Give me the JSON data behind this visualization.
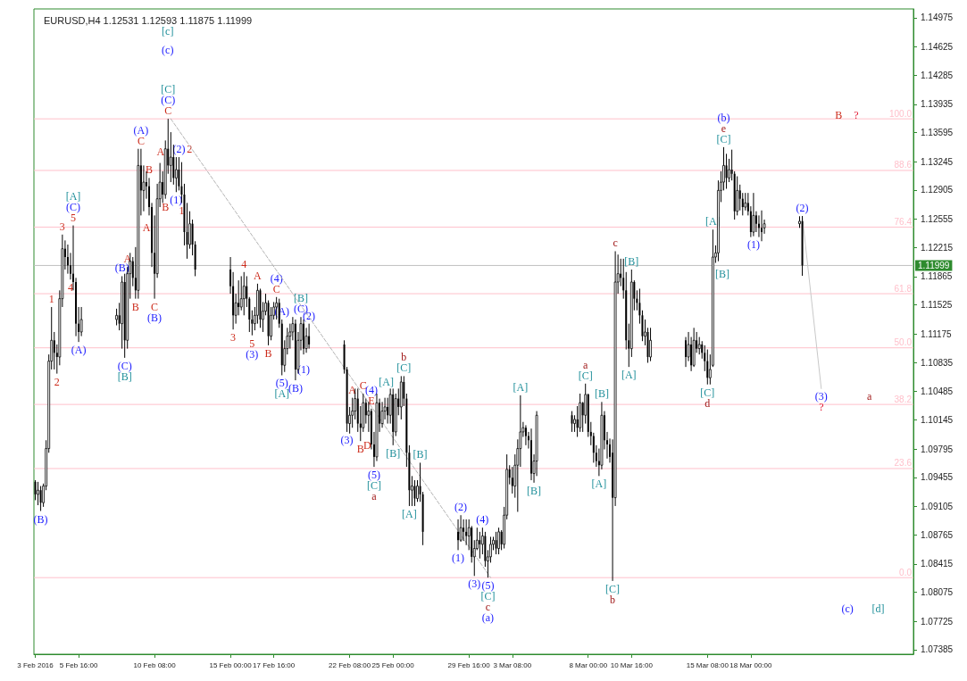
{
  "chart_data": {
    "type": "candlestick",
    "title": "EURUSD,H4 1.12531 1.12593 1.11875 1.11999",
    "color": "#000000",
    "marker": "none",
    "x": [
      "2016-02-03T00:00",
      "2016-02-03T04:00",
      "2016-02-03T08:00",
      "2016-02-03T12:00",
      "2016-02-03T16:00",
      "2016-02-03T20:00",
      "2016-02-04T00:00",
      "2016-02-04T04:00",
      "2016-02-04T08:00",
      "2016-02-04T12:00",
      "2016-02-04T16:00",
      "2016-02-04T20:00",
      "2016-02-05T00:00",
      "2016-02-05T04:00",
      "2016-02-05T08:00",
      "2016-02-05T12:00",
      "2016-02-05T16:00",
      "2016-02-05T20:00",
      "2016-02-08T00:00",
      "2016-02-08T04:00",
      "2016-02-08T08:00",
      "2016-02-08T12:00",
      "2016-02-08T16:00",
      "2016-02-08T20:00",
      "2016-02-09T00:00",
      "2016-02-09T04:00",
      "2016-02-09T08:00",
      "2016-02-09T12:00",
      "2016-02-09T16:00",
      "2016-02-09T20:00",
      "2016-02-10T00:00",
      "2016-02-10T04:00",
      "2016-02-10T08:00",
      "2016-02-10T12:00",
      "2016-02-10T16:00",
      "2016-02-10T20:00",
      "2016-02-11T00:00",
      "2016-02-11T04:00",
      "2016-02-11T08:00",
      "2016-02-11T12:00",
      "2016-02-11T16:00",
      "2016-02-11T20:00",
      "2016-02-12T00:00",
      "2016-02-12T04:00",
      "2016-02-12T08:00",
      "2016-02-12T12:00",
      "2016-02-12T16:00",
      "2016-02-12T20:00",
      "2016-02-15T00:00",
      "2016-02-15T04:00",
      "2016-02-15T08:00",
      "2016-02-15T12:00",
      "2016-02-15T16:00",
      "2016-02-15T20:00",
      "2016-02-16T00:00",
      "2016-02-16T04:00",
      "2016-02-16T08:00",
      "2016-02-16T12:00",
      "2016-02-16T16:00",
      "2016-02-16T20:00",
      "2016-02-17T00:00",
      "2016-02-17T04:00",
      "2016-02-17T08:00",
      "2016-02-17T12:00",
      "2016-02-17T16:00",
      "2016-02-17T20:00",
      "2016-02-18T00:00",
      "2016-02-18T04:00",
      "2016-02-18T08:00",
      "2016-02-18T12:00",
      "2016-02-18T16:00",
      "2016-02-18T20:00",
      "2016-02-19T00:00",
      "2016-02-19T04:00",
      "2016-02-19T08:00",
      "2016-02-19T12:00",
      "2016-02-19T16:00",
      "2016-02-19T20:00",
      "2016-02-22T00:00",
      "2016-02-22T04:00",
      "2016-02-22T08:00",
      "2016-02-22T12:00",
      "2016-02-22T16:00",
      "2016-02-22T20:00",
      "2016-02-23T00:00",
      "2016-02-23T04:00",
      "2016-02-23T08:00",
      "2016-02-23T12:00",
      "2016-02-23T16:00",
      "2016-02-23T20:00",
      "2016-02-24T00:00",
      "2016-02-24T04:00",
      "2016-02-24T08:00",
      "2016-02-24T12:00",
      "2016-02-24T16:00",
      "2016-02-24T20:00",
      "2016-02-25T00:00",
      "2016-02-25T04:00",
      "2016-02-25T08:00",
      "2016-02-25T12:00",
      "2016-02-25T16:00",
      "2016-02-25T20:00",
      "2016-02-26T00:00",
      "2016-02-26T04:00",
      "2016-02-26T08:00",
      "2016-02-26T12:00",
      "2016-02-26T16:00",
      "2016-02-26T20:00",
      "2016-02-29T00:00",
      "2016-02-29T04:00",
      "2016-02-29T08:00",
      "2016-02-29T12:00",
      "2016-02-29T16:00",
      "2016-02-29T20:00",
      "2016-03-01T00:00",
      "2016-03-01T04:00",
      "2016-03-01T08:00",
      "2016-03-01T12:00",
      "2016-03-01T16:00",
      "2016-03-01T20:00",
      "2016-03-02T00:00",
      "2016-03-02T04:00",
      "2016-03-02T08:00",
      "2016-03-02T12:00",
      "2016-03-02T16:00",
      "2016-03-02T20:00",
      "2016-03-03T00:00",
      "2016-03-03T04:00",
      "2016-03-03T08:00",
      "2016-03-03T12:00",
      "2016-03-03T16:00",
      "2016-03-03T20:00",
      "2016-03-04T00:00",
      "2016-03-04T04:00",
      "2016-03-04T08:00",
      "2016-03-04T12:00",
      "2016-03-04T16:00",
      "2016-03-04T20:00",
      "2016-03-07T00:00",
      "2016-03-07T04:00",
      "2016-03-07T08:00",
      "2016-03-07T12:00",
      "2016-03-07T16:00",
      "2016-03-07T20:00",
      "2016-03-08T00:00",
      "2016-03-08T04:00",
      "2016-03-08T08:00",
      "2016-03-08T12:00",
      "2016-03-08T16:00",
      "2016-03-08T20:00",
      "2016-03-09T00:00",
      "2016-03-09T04:00",
      "2016-03-09T08:00",
      "2016-03-09T12:00",
      "2016-03-09T16:00",
      "2016-03-09T20:00",
      "2016-03-10T00:00",
      "2016-03-10T04:00",
      "2016-03-10T08:00",
      "2016-03-10T12:00",
      "2016-03-10T16:00",
      "2016-03-10T20:00",
      "2016-03-11T00:00",
      "2016-03-11T04:00",
      "2016-03-11T08:00",
      "2016-03-11T12:00",
      "2016-03-11T16:00",
      "2016-03-11T20:00",
      "2016-03-14T00:00",
      "2016-03-14T04:00",
      "2016-03-14T08:00",
      "2016-03-14T12:00",
      "2016-03-14T16:00",
      "2016-03-14T20:00",
      "2016-03-15T00:00",
      "2016-03-15T04:00",
      "2016-03-15T08:00",
      "2016-03-15T12:00",
      "2016-03-15T16:00",
      "2016-03-15T20:00",
      "2016-03-16T00:00",
      "2016-03-16T04:00",
      "2016-03-16T08:00",
      "2016-03-16T12:00",
      "2016-03-16T16:00",
      "2016-03-16T20:00",
      "2016-03-17T00:00",
      "2016-03-17T04:00",
      "2016-03-17T08:00",
      "2016-03-17T12:00",
      "2016-03-17T16:00",
      "2016-03-17T20:00",
      "2016-03-18T00:00",
      "2016-03-18T04:00",
      "2016-03-18T08:00",
      "2016-03-18T12:00",
      "2016-03-18T16:00",
      "2016-03-18T20:00",
      "2016-03-21T00:00",
      "2016-03-21T04:00"
    ],
    "ohlc": [
      [
        1.094,
        1.0942,
        1.0918,
        1.0925
      ],
      [
        1.0925,
        1.094,
        1.0912,
        1.093
      ],
      [
        1.093,
        1.0935,
        1.0905,
        1.0915
      ],
      [
        1.0915,
        1.0938,
        1.091,
        1.0935
      ],
      [
        1.0935,
        1.099,
        1.093,
        1.098
      ],
      [
        1.098,
        1.1093,
        1.0975,
        1.1085
      ],
      [
        1.1085,
        1.115,
        1.1075,
        1.111
      ],
      [
        1.111,
        1.112,
        1.1075,
        1.1095
      ],
      [
        1.1095,
        1.1105,
        1.107,
        1.109
      ],
      [
        1.109,
        1.117,
        1.108,
        1.116
      ],
      [
        1.116,
        1.1237,
        1.115,
        1.122
      ],
      [
        1.122,
        1.123,
        1.1195,
        1.121
      ],
      [
        1.121,
        1.1225,
        1.119,
        1.12
      ],
      [
        1.12,
        1.1215,
        1.1183,
        1.119
      ],
      [
        1.119,
        1.1248,
        1.117,
        1.118
      ],
      [
        1.118,
        1.1185,
        1.1115,
        1.113
      ],
      [
        1.113,
        1.115,
        1.1108,
        1.112
      ],
      [
        1.112,
        1.115,
        1.1115,
        1.1135
      ],
      [
        1.1135,
        1.1148,
        1.1128,
        1.114
      ],
      [
        1.114,
        1.1155,
        1.1122,
        1.113
      ],
      [
        1.113,
        1.1187,
        1.11,
        1.118
      ],
      [
        1.118,
        1.119,
        1.1089,
        1.111
      ],
      [
        1.111,
        1.1198,
        1.11,
        1.119
      ],
      [
        1.119,
        1.1215,
        1.116,
        1.1205
      ],
      [
        1.1205,
        1.121,
        1.1175,
        1.1185
      ],
      [
        1.1185,
        1.1222,
        1.116,
        1.117
      ],
      [
        1.117,
        1.134,
        1.116,
        1.132
      ],
      [
        1.132,
        1.134,
        1.126,
        1.129
      ],
      [
        1.129,
        1.132,
        1.1265,
        1.13
      ],
      [
        1.13,
        1.1313,
        1.128,
        1.1295
      ],
      [
        1.1295,
        1.1305,
        1.126,
        1.127
      ],
      [
        1.127,
        1.1275,
        1.1198,
        1.1215
      ],
      [
        1.1215,
        1.126,
        1.116,
        1.119
      ],
      [
        1.119,
        1.1298,
        1.1185,
        1.128
      ],
      [
        1.128,
        1.1323,
        1.127,
        1.13
      ],
      [
        1.13,
        1.1313,
        1.1275,
        1.1285
      ],
      [
        1.1285,
        1.135,
        1.128,
        1.134
      ],
      [
        1.134,
        1.1376,
        1.131,
        1.132
      ],
      [
        1.132,
        1.136,
        1.13,
        1.133
      ],
      [
        1.133,
        1.1345,
        1.1297,
        1.1305
      ],
      [
        1.1305,
        1.133,
        1.1288,
        1.1315
      ],
      [
        1.1315,
        1.133,
        1.129,
        1.1295
      ],
      [
        1.1295,
        1.1324,
        1.1275,
        1.1285
      ],
      [
        1.1285,
        1.1298,
        1.1224,
        1.124
      ],
      [
        1.124,
        1.1275,
        1.1208,
        1.1225
      ],
      [
        1.1225,
        1.1265,
        1.122,
        1.125
      ],
      [
        1.125,
        1.1255,
        1.1212,
        1.1225
      ],
      [
        1.1225,
        1.1229,
        1.1187,
        1.1195
      ],
      [
        1.1195,
        1.121,
        1.1166,
        1.1175
      ],
      [
        1.1175,
        1.1192,
        1.1123,
        1.114
      ],
      [
        1.114,
        1.1166,
        1.113,
        1.1155
      ],
      [
        1.1155,
        1.1182,
        1.114,
        1.115
      ],
      [
        1.115,
        1.1187,
        1.1146,
        1.116
      ],
      [
        1.116,
        1.1192,
        1.114,
        1.1175
      ],
      [
        1.1175,
        1.1187,
        1.115,
        1.116
      ],
      [
        1.116,
        1.1162,
        1.112,
        1.1135
      ],
      [
        1.1135,
        1.1146,
        1.1116,
        1.113
      ],
      [
        1.113,
        1.115,
        1.1122,
        1.114
      ],
      [
        1.114,
        1.1178,
        1.113,
        1.117
      ],
      [
        1.117,
        1.1172,
        1.1125,
        1.1135
      ],
      [
        1.1135,
        1.1156,
        1.112,
        1.1145
      ],
      [
        1.1145,
        1.1166,
        1.114,
        1.1155
      ],
      [
        1.1155,
        1.1158,
        1.1104,
        1.1115
      ],
      [
        1.1115,
        1.115,
        1.111,
        1.114
      ],
      [
        1.114,
        1.1156,
        1.1135,
        1.115
      ],
      [
        1.115,
        1.1162,
        1.1135,
        1.1155
      ],
      [
        1.1155,
        1.116,
        1.1125,
        1.113
      ],
      [
        1.113,
        1.1135,
        1.1068,
        1.108
      ],
      [
        1.108,
        1.111,
        1.1072,
        1.11
      ],
      [
        1.11,
        1.1125,
        1.1093,
        1.1115
      ],
      [
        1.1115,
        1.113,
        1.11,
        1.112
      ],
      [
        1.112,
        1.1138,
        1.111,
        1.113
      ],
      [
        1.113,
        1.1135,
        1.1062,
        1.1075
      ],
      [
        1.1075,
        1.112,
        1.107,
        1.111
      ],
      [
        1.111,
        1.1138,
        1.1098,
        1.113
      ],
      [
        1.113,
        1.1135,
        1.1093,
        1.11
      ],
      [
        1.11,
        1.1125,
        1.1095,
        1.1115
      ],
      [
        1.1115,
        1.113,
        1.11,
        1.1105
      ],
      [
        1.1105,
        1.111,
        1.107,
        1.1075
      ],
      [
        1.1075,
        1.1078,
        1.1,
        1.101
      ],
      [
        1.101,
        1.103,
        1.0998,
        1.102
      ],
      [
        1.102,
        1.1041,
        1.1005,
        1.1025
      ],
      [
        1.1025,
        1.1052,
        1.1015,
        1.104
      ],
      [
        1.104,
        1.1052,
        1.1,
        1.101
      ],
      [
        1.101,
        1.1031,
        1.0989,
        1.1005
      ],
      [
        1.1005,
        1.1046,
        1.1,
        1.1035
      ],
      [
        1.1035,
        1.104,
        1.101,
        1.102
      ],
      [
        1.102,
        1.1036,
        1.1,
        1.1025
      ],
      [
        1.1025,
        1.1028,
        1.0979,
        1.0985
      ],
      [
        1.0985,
        1.1,
        1.0958,
        1.097
      ],
      [
        1.097,
        1.1046,
        1.0965,
        1.1035
      ],
      [
        1.1035,
        1.104,
        1.1,
        1.101
      ],
      [
        1.101,
        1.1036,
        1.1005,
        1.1025
      ],
      [
        1.1025,
        1.1041,
        1.1015,
        1.103
      ],
      [
        1.103,
        1.1041,
        1.101,
        1.102
      ],
      [
        1.102,
        1.1052,
        1.101,
        1.1045
      ],
      [
        1.1045,
        1.1052,
        1.0984,
        1.1
      ],
      [
        1.1,
        1.1046,
        1.0995,
        1.104
      ],
      [
        1.104,
        1.1052,
        1.102,
        1.103
      ],
      [
        1.103,
        1.1067,
        1.1015,
        1.106
      ],
      [
        1.106,
        1.1067,
        1.1031,
        1.104
      ],
      [
        1.104,
        1.1046,
        1.0958,
        1.0975
      ],
      [
        1.0975,
        1.0984,
        1.0911,
        1.093
      ],
      [
        1.093,
        1.0947,
        1.0911,
        1.0935
      ],
      [
        1.0935,
        1.0942,
        1.0911,
        1.092
      ],
      [
        1.092,
        1.0942,
        1.0916,
        1.0935
      ],
      [
        1.0935,
        1.0963,
        1.0916,
        1.0925
      ],
      [
        1.0925,
        1.0928,
        1.0864,
        1.088
      ],
      [
        1.088,
        1.0895,
        1.0858,
        1.087
      ],
      [
        1.087,
        1.09,
        1.0868,
        1.0885
      ],
      [
        1.0885,
        1.0895,
        1.0869,
        1.088
      ],
      [
        1.088,
        1.0895,
        1.0864,
        1.0875
      ],
      [
        1.0875,
        1.0895,
        1.0858,
        1.0885
      ],
      [
        1.0885,
        1.0887,
        1.0843,
        1.085
      ],
      [
        1.085,
        1.087,
        1.0827,
        1.086
      ],
      [
        1.086,
        1.0885,
        1.0858,
        1.087
      ],
      [
        1.087,
        1.088,
        1.0848,
        1.0865
      ],
      [
        1.0865,
        1.0885,
        1.0853,
        1.0875
      ],
      [
        1.0875,
        1.088,
        1.0838,
        1.0845
      ],
      [
        1.0845,
        1.0858,
        1.0825,
        1.085
      ],
      [
        1.085,
        1.0874,
        1.0843,
        1.0865
      ],
      [
        1.0865,
        1.0874,
        1.0858,
        1.087
      ],
      [
        1.087,
        1.088,
        1.0853,
        1.086
      ],
      [
        1.086,
        1.0885,
        1.0853,
        1.088
      ],
      [
        1.088,
        1.0882,
        1.0858,
        1.0865
      ],
      [
        1.0865,
        1.091,
        1.086,
        1.09
      ],
      [
        1.09,
        1.0973,
        1.0895,
        1.0955
      ],
      [
        1.0955,
        1.096,
        1.0937,
        1.0945
      ],
      [
        1.0945,
        1.0958,
        1.0926,
        1.0935
      ],
      [
        1.0935,
        1.0973,
        1.0921,
        1.096
      ],
      [
        1.096,
        1.0991,
        1.0904,
        1.098
      ],
      [
        1.098,
        1.1044,
        1.0958,
        1.1
      ],
      [
        1.1,
        1.1012,
        1.0994,
        1.1005
      ],
      [
        1.1005,
        1.1008,
        1.0984,
        1.0995
      ],
      [
        1.0995,
        1.1,
        1.098,
        1.099
      ],
      [
        1.099,
        1.1004,
        1.0942,
        1.095
      ],
      [
        1.095,
        1.0973,
        1.0939,
        1.0965
      ],
      [
        1.0965,
        1.1025,
        1.0947,
        1.102
      ],
      [
        1.102,
        1.1025,
        1.1,
        1.101
      ],
      [
        1.101,
        1.102,
        1.1,
        1.1015
      ],
      [
        1.1015,
        1.1031,
        1.0994,
        1.1005
      ],
      [
        1.1005,
        1.1046,
        1.1,
        1.1035
      ],
      [
        1.1035,
        1.1036,
        1.1,
        1.102
      ],
      [
        1.102,
        1.1058,
        1.101,
        1.1045
      ],
      [
        1.1045,
        1.1046,
        1.0994,
        1.1
      ],
      [
        1.1,
        1.1012,
        1.0984,
        1.0995
      ],
      [
        1.0995,
        1.0999,
        1.0963,
        1.0975
      ],
      [
        1.0975,
        1.0984,
        1.0958,
        1.0965
      ],
      [
        1.0965,
        1.098,
        1.0947,
        1.096
      ],
      [
        1.096,
        1.1036,
        1.0955,
        1.102
      ],
      [
        1.102,
        1.1025,
        1.0979,
        1.099
      ],
      [
        1.099,
        1.1,
        1.0968,
        1.0985
      ],
      [
        1.0985,
        1.0992,
        1.0963,
        1.097
      ],
      [
        1.0975,
        1.0991,
        1.0821,
        1.0921
      ],
      [
        1.0921,
        1.1217,
        1.0911,
        1.118
      ],
      [
        1.118,
        1.1213,
        1.1166,
        1.119
      ],
      [
        1.119,
        1.1208,
        1.1175,
        1.1185
      ],
      [
        1.1185,
        1.1208,
        1.116,
        1.117
      ],
      [
        1.117,
        1.1192,
        1.1099,
        1.111
      ],
      [
        1.111,
        1.113,
        1.1078,
        1.11
      ],
      [
        1.11,
        1.1195,
        1.109,
        1.118
      ],
      [
        1.118,
        1.1182,
        1.1146,
        1.116
      ],
      [
        1.116,
        1.117,
        1.1146,
        1.1155
      ],
      [
        1.1155,
        1.1172,
        1.113,
        1.114
      ],
      [
        1.114,
        1.1146,
        1.1109,
        1.1115
      ],
      [
        1.1115,
        1.1135,
        1.1104,
        1.112
      ],
      [
        1.112,
        1.1125,
        1.1083,
        1.109
      ],
      [
        1.109,
        1.1125,
        1.1085,
        1.111
      ],
      [
        1.111,
        1.1114,
        1.1078,
        1.109
      ],
      [
        1.109,
        1.112,
        1.1085,
        1.1105
      ],
      [
        1.1105,
        1.1114,
        1.1073,
        1.108
      ],
      [
        1.108,
        1.1125,
        1.1078,
        1.111
      ],
      [
        1.111,
        1.112,
        1.1095,
        1.11
      ],
      [
        1.11,
        1.1114,
        1.1093,
        1.1105
      ],
      [
        1.1105,
        1.1109,
        1.1088,
        1.1095
      ],
      [
        1.1095,
        1.1104,
        1.1073,
        1.1085
      ],
      [
        1.1085,
        1.1099,
        1.1057,
        1.1065
      ],
      [
        1.1065,
        1.1093,
        1.1057,
        1.1075
      ],
      [
        1.108,
        1.1243,
        1.1078,
        1.121
      ],
      [
        1.121,
        1.1224,
        1.1203,
        1.1215
      ],
      [
        1.1215,
        1.1302,
        1.1205,
        1.129
      ],
      [
        1.129,
        1.1313,
        1.1276,
        1.13
      ],
      [
        1.13,
        1.1342,
        1.129,
        1.132
      ],
      [
        1.132,
        1.1334,
        1.1292,
        1.1305
      ],
      [
        1.1305,
        1.1328,
        1.13,
        1.1315
      ],
      [
        1.1315,
        1.1339,
        1.1302,
        1.131
      ],
      [
        1.131,
        1.1313,
        1.1255,
        1.1265
      ],
      [
        1.1265,
        1.1307,
        1.126,
        1.129
      ],
      [
        1.129,
        1.1297,
        1.1266,
        1.128
      ],
      [
        1.128,
        1.1287,
        1.126,
        1.127
      ],
      [
        1.127,
        1.1287,
        1.1266,
        1.1275
      ],
      [
        1.1275,
        1.1287,
        1.126,
        1.1265
      ],
      [
        1.1265,
        1.1271,
        1.1234,
        1.124
      ],
      [
        1.124,
        1.1287,
        1.1235,
        1.126
      ],
      [
        1.126,
        1.1265,
        1.124,
        1.125
      ],
      [
        1.125,
        1.126,
        1.1234,
        1.1245
      ],
      [
        1.1245,
        1.1266,
        1.1229,
        1.124
      ],
      [
        1.1245,
        1.1255,
        1.1238,
        1.125
      ],
      [
        1.125,
        1.1259,
        1.1245,
        1.1253
      ],
      [
        1.12531,
        1.12593,
        1.11875,
        1.11999
      ]
    ],
    "series": [
      {
        "type": "line",
        "color": "#b4b4b4",
        "line_style": "dashed",
        "x": [
          "2016-02-11T08:00",
          "2016-03-02T00:00"
        ],
        "values": [
          1.1376,
          1.0825
        ]
      },
      {
        "type": "line",
        "color": "#c8c8c8",
        "line_style": "solid",
        "x": [
          "2016-03-21T04:00",
          "2016-03-22T08:00"
        ],
        "values": [
          1.1259,
          1.1052
        ]
      }
    ],
    "xlim": [
      "2016-02-02T22:00",
      "2016-03-28T00:00"
    ],
    "xticks": [
      {
        "value": "2016-02-03T00:00",
        "label": "3 Feb 2016"
      },
      {
        "value": "2016-02-05T16:00",
        "label": "5 Feb 16:00"
      },
      {
        "value": "2016-02-10T08:00",
        "label": "10 Feb 08:00"
      },
      {
        "value": "2016-02-15T00:00",
        "label": "15 Feb 00:00"
      },
      {
        "value": "2016-02-17T16:00",
        "label": "17 Feb 16:00"
      },
      {
        "value": "2016-02-22T08:00",
        "label": "22 Feb 08:00"
      },
      {
        "value": "2016-02-25T00:00",
        "label": "25 Feb 00:00"
      },
      {
        "value": "2016-02-29T16:00",
        "label": "29 Feb 16:00"
      },
      {
        "value": "2016-03-03T08:00",
        "label": "3 Mar 08:00"
      },
      {
        "value": "2016-03-08T00:00",
        "label": "8 Mar 00:00"
      },
      {
        "value": "2016-03-10T16:00",
        "label": "10 Mar 16:00"
      },
      {
        "value": "2016-03-15T08:00",
        "label": "15 Mar 08:00"
      },
      {
        "value": "2016-03-18T00:00",
        "label": "18 Mar 00:00"
      }
    ],
    "ylim": [
      1.0733,
      1.1508
    ],
    "yticks": [
      1.07385,
      1.07725,
      1.08075,
      1.08415,
      1.08765,
      1.09105,
      1.09455,
      1.09795,
      1.10145,
      1.10485,
      1.10835,
      1.11175,
      1.11525,
      1.11865,
      1.12215,
      1.12555,
      1.12905,
      1.13245,
      1.13595,
      1.13935,
      1.14285,
      1.14625,
      1.14975
    ],
    "ref_lines": [
      {
        "axis": "y",
        "value": 1.1376,
        "color": "#ffc0cb"
      },
      {
        "axis": "y",
        "value": 1.1314,
        "color": "#ffc0cb"
      },
      {
        "axis": "y",
        "value": 1.1246,
        "color": "#ffc0cb"
      },
      {
        "axis": "y",
        "value": 1.1166,
        "color": "#ffc0cb"
      },
      {
        "axis": "y",
        "value": 1.1101,
        "color": "#ffc0cb"
      },
      {
        "axis": "y",
        "value": 1.1033,
        "color": "#ffc0cb"
      },
      {
        "axis": "y",
        "value": 1.0956,
        "color": "#ffc0cb"
      },
      {
        "axis": "y",
        "value": 1.0825,
        "color": "#ffc0cb"
      },
      {
        "axis": "y",
        "value": 1.11999,
        "label": "1.11999",
        "color": "#c0c0c0"
      }
    ],
    "annotations": [
      {
        "text": "C",
        "x": "2016-02-11T04:00",
        "y": 1.1376
      },
      {
        "text": "(C)",
        "x": "2016-02-11T04:00",
        "y": 1.1376
      },
      {
        "text": "[C]",
        "x": "2016-02-11T04:00",
        "y": 1.1376
      },
      {
        "text": "(2)",
        "x": "2016-02-11T20:00",
        "y": 1.133
      },
      {
        "text": "(1)",
        "x": "2016-02-11T16:00",
        "y": 1.1288
      },
      {
        "text": "1",
        "x": "2016-02-12T00:00",
        "y": 1.1275
      },
      {
        "text": "B",
        "x": "2016-02-11T00:00",
        "y": 1.128
      },
      {
        "text": "C",
        "x": "2016-02-10T08:00",
        "y": 1.116
      },
      {
        "text": "(B)",
        "x": "2016-02-10T08:00",
        "y": 1.116
      },
      {
        "text": "C",
        "x": "2016-02-09T12:00",
        "y": 1.134
      },
      {
        "text": "(A)",
        "x": "2016-02-09T12:00",
        "y": 1.134
      },
      {
        "text": "B",
        "x": "2016-02-10T00:00",
        "y": 1.1305
      },
      {
        "text": "A",
        "x": "2016-02-08T16:00",
        "y": 1.1198
      },
      {
        "text": "(B)",
        "x": "2016-02-08T08:00",
        "y": 1.1187
      },
      {
        "text": "B",
        "x": "2016-02-09T04:00",
        "y": 1.116
      },
      {
        "text": "(C)",
        "x": "2016-02-08T12:00",
        "y": 1.1089
      },
      {
        "text": "[B]",
        "x": "2016-02-08T12:00",
        "y": 1.1089
      },
      {
        "text": "(A)",
        "x": "2016-02-05T16:00",
        "y": 1.1108
      },
      {
        "text": "4",
        "x": "2016-02-05T04:00",
        "y": 1.1183
      },
      {
        "text": "5",
        "x": "2016-02-05T08:00",
        "y": 1.1248
      },
      {
        "text": "(C)",
        "x": "2016-02-05T08:00",
        "y": 1.1248
      },
      {
        "text": "[A]",
        "x": "2016-02-05T08:00",
        "y": 1.1248
      },
      {
        "text": "3",
        "x": "2016-02-04T16:00",
        "y": 1.1237
      },
      {
        "text": "1",
        "x": "2016-02-04T00:00",
        "y": 1.115
      },
      {
        "text": "2",
        "x": "2016-02-04T08:00",
        "y": 1.107
      },
      {
        "text": "(B)",
        "x": "2016-02-03T08:00",
        "y": 1.0905
      },
      {
        "text": "4",
        "x": "2016-02-15T20:00",
        "y": 1.1192
      },
      {
        "text": "3",
        "x": "2016-02-15T04:00",
        "y": 1.1123
      },
      {
        "text": "A",
        "x": "2016-02-16T16:00",
        "y": 1.1178
      },
      {
        "text": "5",
        "x": "2016-02-16T08:00",
        "y": 1.1116
      },
      {
        "text": "(3)",
        "x": "2016-02-16T08:00",
        "y": 1.1116
      },
      {
        "text": "B",
        "x": "2016-02-17T08:00",
        "y": 1.1104
      },
      {
        "text": "C",
        "x": "2016-02-17T20:00",
        "y": 1.1162
      },
      {
        "text": "(4)",
        "x": "2016-02-17T20:00",
        "y": 1.1162
      },
      {
        "text": "(5)",
        "x": "2016-02-18T04:00",
        "y": 1.1068
      },
      {
        "text": "[A]",
        "x": "2016-02-18T04:00",
        "y": 1.1068
      },
      {
        "text": "(A)",
        "x": "2016-02-18T04:00",
        "y": 1.1135
      },
      {
        "text": "(B)",
        "x": "2016-02-19T00:00",
        "y": 1.1062
      },
      {
        "text": "(C)",
        "x": "2016-02-19T08:00",
        "y": 1.1138
      },
      {
        "text": "[B]",
        "x": "2016-02-19T08:00",
        "y": 1.1138
      },
      {
        "text": "(2)",
        "x": "2016-02-19T20:00",
        "y": 1.113
      },
      {
        "text": "(3)",
        "x": "2016-02-22T04:00",
        "y": 1.1
      },
      {
        "text": "A",
        "x": "2016-02-22T12:00",
        "y": 1.1041
      },
      {
        "text": "C",
        "x": "2016-02-23T04:00",
        "y": 1.1046
      },
      {
        "text": "E",
        "x": "2016-02-23T16:00",
        "y": 1.1028
      },
      {
        "text": "(4)",
        "x": "2016-02-23T16:00",
        "y": 1.1028
      },
      {
        "text": "B",
        "x": "2016-02-23T00:00",
        "y": 1.0989
      },
      {
        "text": "(5)",
        "x": "2016-02-23T20:00",
        "y": 1.0958
      },
      {
        "text": "[C]",
        "x": "2016-02-23T20:00",
        "y": 1.0958
      },
      {
        "text": "a",
        "x": "2016-02-23T20:00",
        "y": 1.0958
      },
      {
        "text": "[B]",
        "x": "2016-02-25T00:00",
        "y": 1.0984
      },
      {
        "text": "[C]",
        "x": "2016-02-25T16:00",
        "y": 1.1067
      },
      {
        "text": "b",
        "x": "2016-02-25T16:00",
        "y": 1.1067
      },
      {
        "text": "[A]",
        "x": "2016-02-26T00:00",
        "y": 1.0911
      },
      {
        "text": "[B]",
        "x": "2016-02-26T16:00",
        "y": 1.0963
      },
      {
        "text": "(1)",
        "x": "2016-02-29T00:00",
        "y": 1.0858
      },
      {
        "text": "(2)",
        "x": "2016-02-29T04:00",
        "y": 1.09
      },
      {
        "text": "(3)",
        "x": "2016-03-01T00:00",
        "y": 1.0827
      },
      {
        "text": "(4)",
        "x": "2016-03-01T12:00",
        "y": 1.0885
      },
      {
        "text": "(5)",
        "x": "2016-03-01T20:00",
        "y": 1.0825
      },
      {
        "text": "[C]",
        "x": "2016-03-01T20:00",
        "y": 1.0825
      },
      {
        "text": "c",
        "x": "2016-03-01T20:00",
        "y": 1.0825
      },
      {
        "text": "[A]",
        "x": "2016-03-03T20:00",
        "y": 1.1044
      },
      {
        "text": "[B]",
        "x": "2016-03-04T16:00",
        "y": 1.0939
      },
      {
        "text": "[C]",
        "x": "2016-03-07T20:00",
        "y": 1.1058
      },
      {
        "text": "a",
        "x": "2016-03-07T20:00",
        "y": 1.1058
      },
      {
        "text": "[A]",
        "x": "2016-03-08T16:00",
        "y": 1.0947
      },
      {
        "text": "[B]",
        "x": "2016-03-08T20:00",
        "y": 1.1036
      },
      {
        "text": "[C]",
        "x": "2016-03-09T12:00",
        "y": 1.0821
      },
      {
        "text": "b",
        "x": "2016-03-09T12:00",
        "y": 1.0821
      },
      {
        "text": "c",
        "x": "2016-03-09T16:00",
        "y": 1.1217
      },
      {
        "text": "[A]",
        "x": "2016-03-10T12:00",
        "y": 1.1078
      },
      {
        "text": "[B]",
        "x": "2016-03-10T16:00",
        "y": 1.1195
      },
      {
        "text": "[C]",
        "x": "2016-03-15T08:00",
        "y": 1.1057
      },
      {
        "text": "d",
        "x": "2016-03-15T08:00",
        "y": 1.1057
      },
      {
        "text": "[A]",
        "x": "2016-03-15T16:00",
        "y": 1.1243
      },
      {
        "text": "[C]",
        "x": "2016-03-16T08:00",
        "y": 1.1342
      },
      {
        "text": "e",
        "x": "2016-03-16T08:00",
        "y": 1.1342
      },
      {
        "text": "(b)",
        "x": "2016-03-16T08:00",
        "y": 1.1342
      },
      {
        "text": "(1)",
        "x": "2016-03-18T04:00",
        "y": 1.1235
      },
      {
        "text": "(2)",
        "x": "2016-03-21T04:00",
        "y": 1.12593
      },
      {
        "text": "(3)",
        "x": "2016-03-22T08:00",
        "y": 1.1052
      },
      {
        "text": "?",
        "x": "2016-03-22T08:00",
        "y": 1.1052
      },
      {
        "text": "100.0",
        "x": "2016-03-28T00:00",
        "y": 1.1376
      },
      {
        "text": "88.6",
        "x": "2016-03-28T00:00",
        "y": 1.1314
      },
      {
        "text": "76.4",
        "x": "2016-03-28T00:00",
        "y": 1.1246
      },
      {
        "text": "61.8",
        "x": "2016-03-28T00:00",
        "y": 1.1166
      },
      {
        "text": "50.0",
        "x": "2016-03-28T00:00",
        "y": 1.1101
      },
      {
        "text": "38.2",
        "x": "2016-03-28T00:00",
        "y": 1.1033
      },
      {
        "text": "23.6",
        "x": "2016-03-28T00:00",
        "y": 1.0956
      },
      {
        "text": "0.0",
        "x": "2016-03-28T00:00",
        "y": 1.0825
      },
      "[c]",
      "(c)",
      "2",
      "A",
      "A",
      "D",
      "[A]",
      "(a)",
      "(1)",
      "[B]",
      "B",
      "?",
      "a",
      "(c)",
      "[d]"
    ]
  }
}
